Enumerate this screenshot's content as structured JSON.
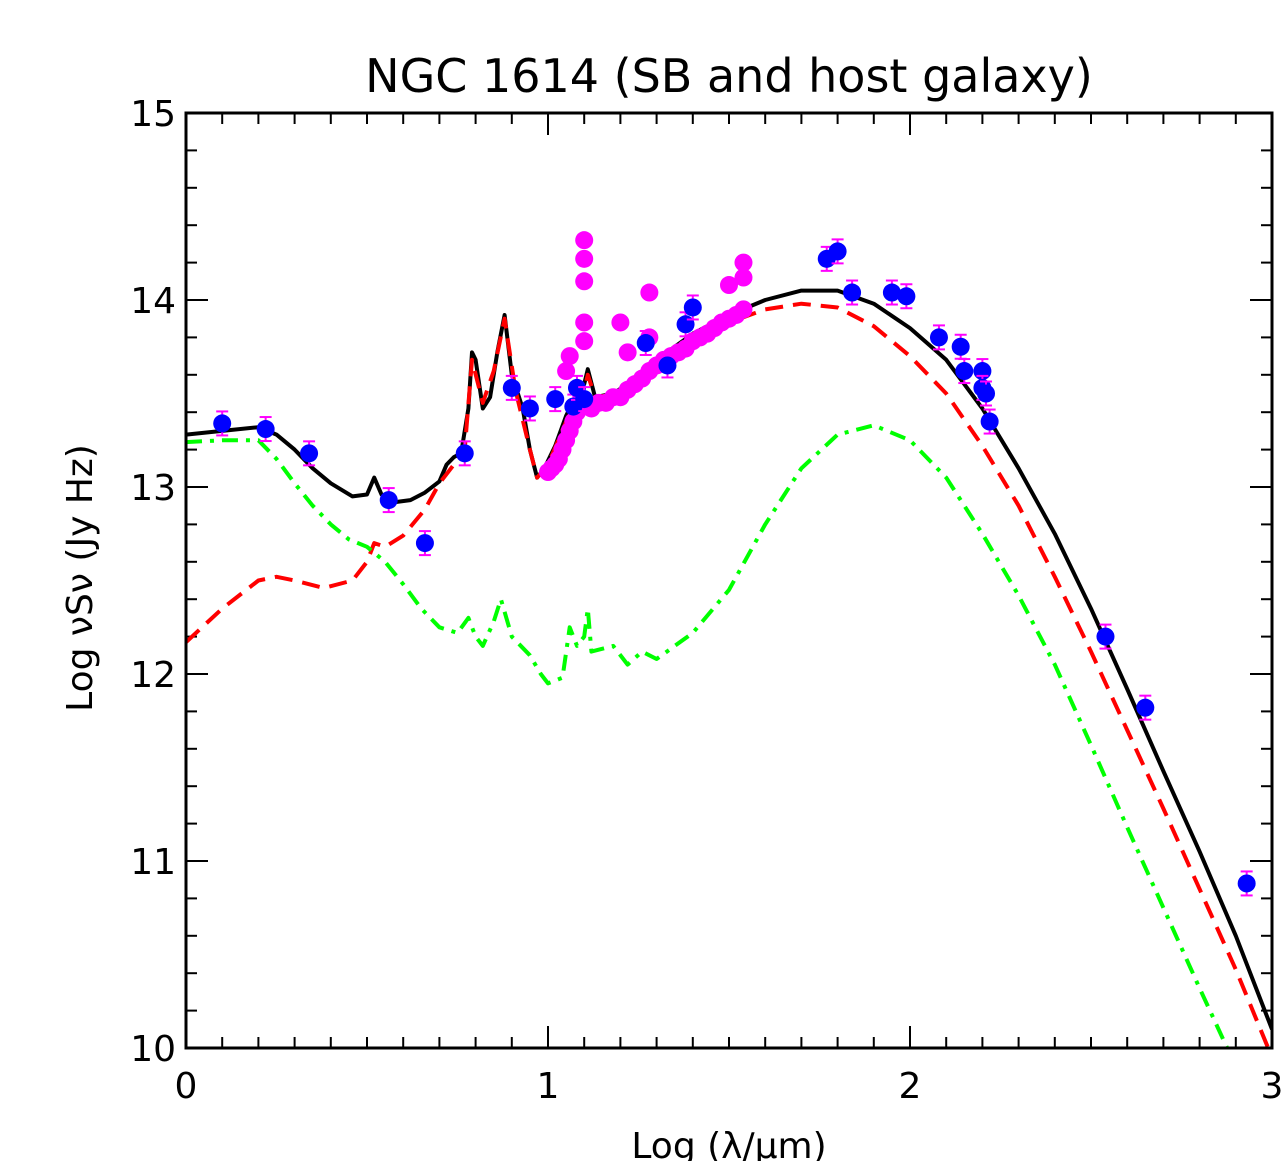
{
  "chart_data": {
    "type": "line",
    "title": "NGC 1614 (SB and host galaxy)",
    "xlabel": "Log (λ/μm)",
    "ylabel": "Log νSν (Jy Hz)",
    "xlim": [
      0,
      3
    ],
    "ylim": [
      10,
      15
    ],
    "x_ticks": [
      "0",
      "1",
      "2",
      "3"
    ],
    "y_ticks": [
      "10",
      "11",
      "12",
      "13",
      "14",
      "15"
    ],
    "grid": false,
    "colors": {
      "total": "#000000",
      "starburst": "#ff0000",
      "host": "#00ff00",
      "spectrum": "#ff00ff",
      "photometry": "#0000ff",
      "errorbar": "#ff00ff"
    },
    "series": [
      {
        "style": "solid",
        "color": "#000000",
        "points": [
          [
            0,
            13.28
          ],
          [
            0.1,
            13.3
          ],
          [
            0.2,
            13.32
          ],
          [
            0.25,
            13.28
          ],
          [
            0.3,
            13.2
          ],
          [
            0.35,
            13.1
          ],
          [
            0.4,
            13.02
          ],
          [
            0.46,
            12.95
          ],
          [
            0.5,
            12.96
          ],
          [
            0.52,
            13.05
          ],
          [
            0.54,
            12.96
          ],
          [
            0.58,
            12.92
          ],
          [
            0.62,
            12.93
          ],
          [
            0.66,
            12.97
          ],
          [
            0.7,
            13.03
          ],
          [
            0.72,
            13.12
          ],
          [
            0.74,
            13.16
          ],
          [
            0.76,
            13.18
          ],
          [
            0.78,
            13.42
          ],
          [
            0.79,
            13.72
          ],
          [
            0.8,
            13.68
          ],
          [
            0.82,
            13.42
          ],
          [
            0.84,
            13.48
          ],
          [
            0.86,
            13.72
          ],
          [
            0.88,
            13.92
          ],
          [
            0.9,
            13.6
          ],
          [
            0.93,
            13.42
          ],
          [
            0.95,
            13.2
          ],
          [
            0.97,
            13.05
          ],
          [
            0.99,
            13.1
          ],
          [
            1.02,
            13.22
          ],
          [
            1.05,
            13.38
          ],
          [
            1.08,
            13.5
          ],
          [
            1.1,
            13.55
          ],
          [
            1.11,
            13.63
          ],
          [
            1.13,
            13.48
          ],
          [
            1.18,
            13.5
          ],
          [
            1.22,
            13.55
          ],
          [
            1.3,
            13.68
          ],
          [
            1.4,
            13.82
          ],
          [
            1.5,
            13.92
          ],
          [
            1.6,
            14.0
          ],
          [
            1.7,
            14.05
          ],
          [
            1.8,
            14.05
          ],
          [
            1.9,
            13.98
          ],
          [
            2.0,
            13.85
          ],
          [
            2.1,
            13.68
          ],
          [
            2.2,
            13.42
          ],
          [
            2.3,
            13.1
          ],
          [
            2.4,
            12.75
          ],
          [
            2.5,
            12.35
          ],
          [
            2.6,
            11.92
          ],
          [
            2.7,
            11.48
          ],
          [
            2.8,
            11.05
          ],
          [
            2.9,
            10.6
          ],
          [
            3.0,
            10.1
          ]
        ]
      },
      {
        "style": "dashed",
        "color": "#ff0000",
        "points": [
          [
            0,
            12.17
          ],
          [
            0.1,
            12.35
          ],
          [
            0.2,
            12.5
          ],
          [
            0.25,
            12.52
          ],
          [
            0.3,
            12.5
          ],
          [
            0.38,
            12.46
          ],
          [
            0.46,
            12.5
          ],
          [
            0.5,
            12.6
          ],
          [
            0.52,
            12.7
          ],
          [
            0.55,
            12.68
          ],
          [
            0.6,
            12.74
          ],
          [
            0.66,
            12.88
          ],
          [
            0.7,
            13.02
          ],
          [
            0.74,
            13.12
          ],
          [
            0.77,
            13.2
          ],
          [
            0.79,
            13.68
          ],
          [
            0.82,
            13.45
          ],
          [
            0.85,
            13.62
          ],
          [
            0.88,
            13.9
          ],
          [
            0.91,
            13.52
          ],
          [
            0.95,
            13.2
          ],
          [
            0.97,
            13.05
          ],
          [
            1.0,
            13.12
          ],
          [
            1.05,
            13.35
          ],
          [
            1.1,
            13.52
          ],
          [
            1.11,
            13.6
          ],
          [
            1.13,
            13.48
          ],
          [
            1.2,
            13.5
          ],
          [
            1.3,
            13.65
          ],
          [
            1.4,
            13.78
          ],
          [
            1.5,
            13.88
          ],
          [
            1.6,
            13.95
          ],
          [
            1.7,
            13.98
          ],
          [
            1.8,
            13.96
          ],
          [
            1.9,
            13.86
          ],
          [
            2.0,
            13.7
          ],
          [
            2.1,
            13.5
          ],
          [
            2.2,
            13.22
          ],
          [
            2.3,
            12.9
          ],
          [
            2.4,
            12.52
          ],
          [
            2.5,
            12.12
          ],
          [
            2.6,
            11.7
          ],
          [
            2.7,
            11.28
          ],
          [
            2.8,
            10.85
          ],
          [
            2.9,
            10.42
          ],
          [
            3.0,
            9.95
          ]
        ]
      },
      {
        "style": "dashdot",
        "color": "#00ff00",
        "points": [
          [
            0,
            13.24
          ],
          [
            0.1,
            13.25
          ],
          [
            0.2,
            13.25
          ],
          [
            0.25,
            13.15
          ],
          [
            0.3,
            13.02
          ],
          [
            0.35,
            12.9
          ],
          [
            0.4,
            12.8
          ],
          [
            0.45,
            12.72
          ],
          [
            0.5,
            12.68
          ],
          [
            0.55,
            12.6
          ],
          [
            0.6,
            12.48
          ],
          [
            0.65,
            12.35
          ],
          [
            0.7,
            12.25
          ],
          [
            0.75,
            12.22
          ],
          [
            0.78,
            12.3
          ],
          [
            0.8,
            12.2
          ],
          [
            0.82,
            12.15
          ],
          [
            0.85,
            12.28
          ],
          [
            0.87,
            12.4
          ],
          [
            0.9,
            12.2
          ],
          [
            0.95,
            12.1
          ],
          [
            0.98,
            12.0
          ],
          [
            1.0,
            11.95
          ],
          [
            1.04,
            11.98
          ],
          [
            1.06,
            12.25
          ],
          [
            1.08,
            12.15
          ],
          [
            1.1,
            12.2
          ],
          [
            1.11,
            12.35
          ],
          [
            1.12,
            12.12
          ],
          [
            1.18,
            12.15
          ],
          [
            1.22,
            12.05
          ],
          [
            1.26,
            12.12
          ],
          [
            1.3,
            12.08
          ],
          [
            1.4,
            12.22
          ],
          [
            1.5,
            12.45
          ],
          [
            1.6,
            12.8
          ],
          [
            1.7,
            13.1
          ],
          [
            1.8,
            13.28
          ],
          [
            1.9,
            13.33
          ],
          [
            2.0,
            13.25
          ],
          [
            2.1,
            13.05
          ],
          [
            2.2,
            12.75
          ],
          [
            2.3,
            12.42
          ],
          [
            2.4,
            12.05
          ],
          [
            2.5,
            11.62
          ],
          [
            2.6,
            11.18
          ],
          [
            2.7,
            10.75
          ],
          [
            2.8,
            10.32
          ],
          [
            2.9,
            9.9
          ],
          [
            3.0,
            9.45
          ]
        ]
      }
    ],
    "spectrum_points": [
      [
        1.0,
        13.08
      ],
      [
        1.01,
        13.1
      ],
      [
        1.02,
        13.12
      ],
      [
        1.03,
        13.15
      ],
      [
        1.04,
        13.2
      ],
      [
        1.05,
        13.25
      ],
      [
        1.05,
        13.62
      ],
      [
        1.06,
        13.7
      ],
      [
        1.06,
        13.3
      ],
      [
        1.07,
        13.35
      ],
      [
        1.08,
        13.4
      ],
      [
        1.09,
        13.45
      ],
      [
        1.1,
        14.32
      ],
      [
        1.1,
        14.22
      ],
      [
        1.1,
        14.1
      ],
      [
        1.1,
        13.88
      ],
      [
        1.1,
        13.78
      ],
      [
        1.1,
        13.45
      ],
      [
        1.12,
        13.42
      ],
      [
        1.14,
        13.45
      ],
      [
        1.16,
        13.45
      ],
      [
        1.18,
        13.48
      ],
      [
        1.2,
        13.48
      ],
      [
        1.2,
        13.88
      ],
      [
        1.22,
        13.52
      ],
      [
        1.22,
        13.72
      ],
      [
        1.24,
        13.55
      ],
      [
        1.26,
        13.58
      ],
      [
        1.28,
        14.04
      ],
      [
        1.28,
        13.8
      ],
      [
        1.28,
        13.62
      ],
      [
        1.3,
        13.65
      ],
      [
        1.32,
        13.68
      ],
      [
        1.34,
        13.7
      ],
      [
        1.36,
        13.72
      ],
      [
        1.38,
        13.74
      ],
      [
        1.4,
        13.78
      ],
      [
        1.42,
        13.8
      ],
      [
        1.44,
        13.82
      ],
      [
        1.46,
        13.85
      ],
      [
        1.48,
        13.88
      ],
      [
        1.5,
        13.9
      ],
      [
        1.5,
        14.08
      ],
      [
        1.52,
        13.92
      ],
      [
        1.54,
        13.95
      ],
      [
        1.54,
        14.2
      ],
      [
        1.54,
        14.12
      ]
    ],
    "photometry": [
      [
        0.1,
        13.34
      ],
      [
        0.22,
        13.31
      ],
      [
        0.34,
        13.18
      ],
      [
        0.56,
        12.93
      ],
      [
        0.66,
        12.7
      ],
      [
        0.77,
        13.18
      ],
      [
        0.9,
        13.53
      ],
      [
        0.95,
        13.42
      ],
      [
        1.02,
        13.47
      ],
      [
        1.07,
        13.43
      ],
      [
        1.08,
        13.53
      ],
      [
        1.1,
        13.47
      ],
      [
        1.27,
        13.77
      ],
      [
        1.33,
        13.65
      ],
      [
        1.38,
        13.87
      ],
      [
        1.4,
        13.96
      ],
      [
        1.77,
        14.22
      ],
      [
        1.8,
        14.26
      ],
      [
        1.84,
        14.04
      ],
      [
        1.95,
        14.04
      ],
      [
        1.99,
        14.02
      ],
      [
        2.08,
        13.8
      ],
      [
        2.14,
        13.75
      ],
      [
        2.15,
        13.62
      ],
      [
        2.2,
        13.62
      ],
      [
        2.2,
        13.53
      ],
      [
        2.21,
        13.5
      ],
      [
        2.22,
        13.35
      ],
      [
        2.54,
        12.2
      ],
      [
        2.65,
        11.82
      ],
      [
        2.93,
        10.88
      ]
    ]
  }
}
